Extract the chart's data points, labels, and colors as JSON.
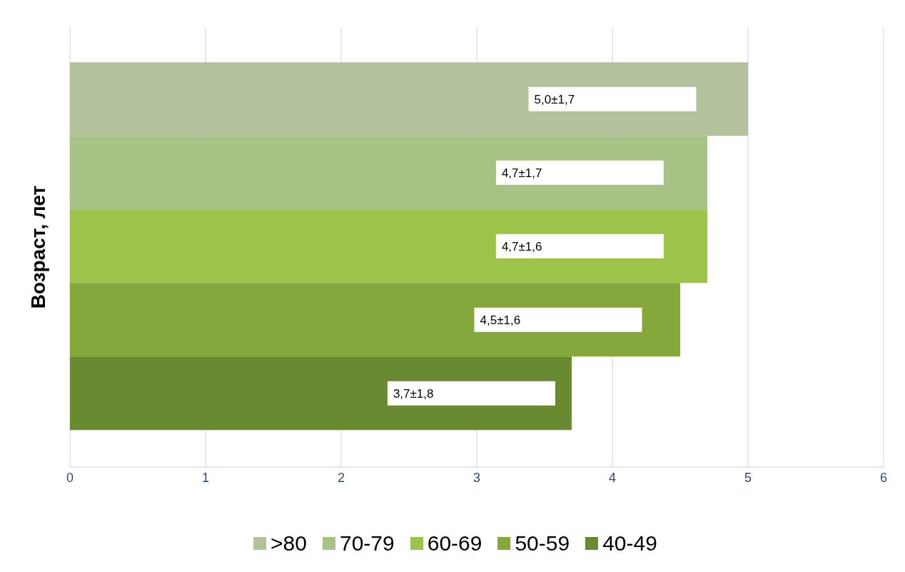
{
  "chart_data": {
    "type": "bar",
    "orientation": "horizontal",
    "ylabel": "Возраст, лет",
    "categories": [
      null
    ],
    "series": [
      {
        "name": ">80",
        "color": "#b3c29c",
        "values": [
          5.0
        ],
        "value_labels": [
          "5,0±1,7"
        ]
      },
      {
        "name": "70-79",
        "color": "#a8c286",
        "values": [
          4.7
        ],
        "value_labels": [
          "4,7±1,7"
        ]
      },
      {
        "name": "60-69",
        "color": "#9cc44a",
        "values": [
          4.7
        ],
        "value_labels": [
          "4,7±1,6"
        ]
      },
      {
        "name": "50-59",
        "color": "#84a83c",
        "values": [
          4.5
        ],
        "value_labels": [
          "4,5±1,6"
        ]
      },
      {
        "name": "40-49",
        "color": "#688a30",
        "values": [
          3.7
        ],
        "value_labels": [
          "3,7±1,8"
        ]
      }
    ],
    "xlim": [
      0,
      6
    ],
    "xticks": [
      0,
      1,
      2,
      3,
      4,
      5,
      6
    ],
    "grid": "x",
    "legend": "bottom"
  }
}
